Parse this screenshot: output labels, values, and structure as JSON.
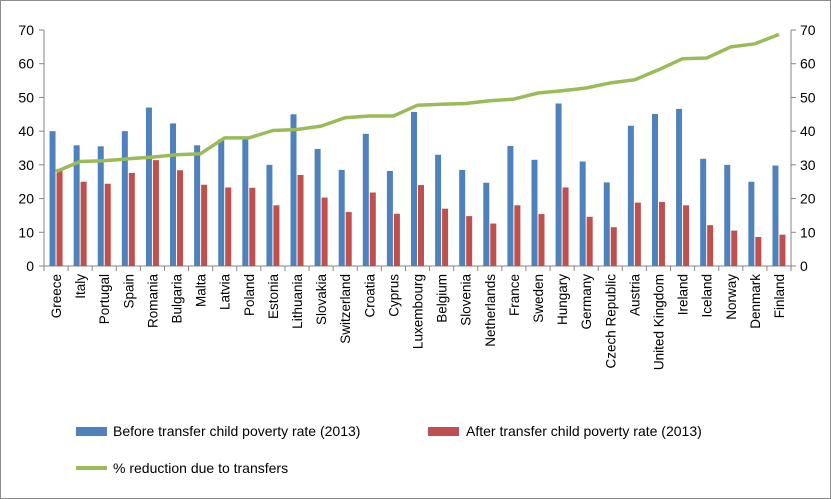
{
  "chart_data": {
    "type": "bar",
    "categories": [
      "Greece",
      "Italy",
      "Portugal",
      "Spain",
      "Romania",
      "Bulgaria",
      "Malta",
      "Latvia",
      "Poland",
      "Estonia",
      "Lithuania",
      "Slovakia",
      "Switzerland",
      "Croatia",
      "Cyprus",
      "Luxembourg",
      "Belgium",
      "Slovenia",
      "Netherlands",
      "France",
      "Sweden",
      "Hungary",
      "Germany",
      "Czech Republic",
      "Austria",
      "United Kingdom",
      "Ireland",
      "Iceland",
      "Norway",
      "Denmark",
      "Finland"
    ],
    "series": [
      {
        "name": "Before transfer child poverty rate (2013)",
        "type": "bar",
        "color": "#4f81bd",
        "values": [
          40,
          35.8,
          35.5,
          40,
          47,
          42.3,
          35.8,
          37.6,
          38,
          30,
          45,
          34.7,
          28.5,
          39.2,
          28.2,
          45.7,
          33,
          28.5,
          24.7,
          35.6,
          31.5,
          48.2,
          31,
          24.8,
          41.6,
          45.1,
          46.6,
          31.8,
          30,
          25,
          29.8
        ]
      },
      {
        "name": "After transfer child poverty rate (2013)",
        "type": "bar",
        "color": "#c0504d",
        "values": [
          28.8,
          25,
          24.4,
          27.6,
          31.4,
          28.4,
          24.1,
          23.3,
          23.2,
          18,
          27,
          20.3,
          16,
          21.8,
          15.5,
          24,
          17,
          14.8,
          12.6,
          18,
          15.4,
          23.3,
          14.6,
          11.5,
          18.8,
          19,
          18,
          12.1,
          10.5,
          8.6,
          9.3
        ]
      },
      {
        "name": "% reduction due to transfers",
        "type": "line",
        "color": "#9bbb59",
        "values": [
          28,
          31,
          31.2,
          31.8,
          32.3,
          33,
          33.3,
          38,
          38,
          40.2,
          40.5,
          41.5,
          44,
          44.5,
          44.5,
          47.7,
          48,
          48.2,
          49,
          49.5,
          51.3,
          52,
          52.8,
          54.3,
          55.2,
          58.2,
          61.5,
          61.7,
          65,
          65.9,
          68.7
        ]
      }
    ],
    "yticks": [
      0,
      10,
      20,
      30,
      40,
      50,
      60,
      70
    ],
    "ylim": [
      0,
      70
    ],
    "ylim_right": [
      0,
      70
    ],
    "grid": false,
    "legend_position": "bottom"
  }
}
